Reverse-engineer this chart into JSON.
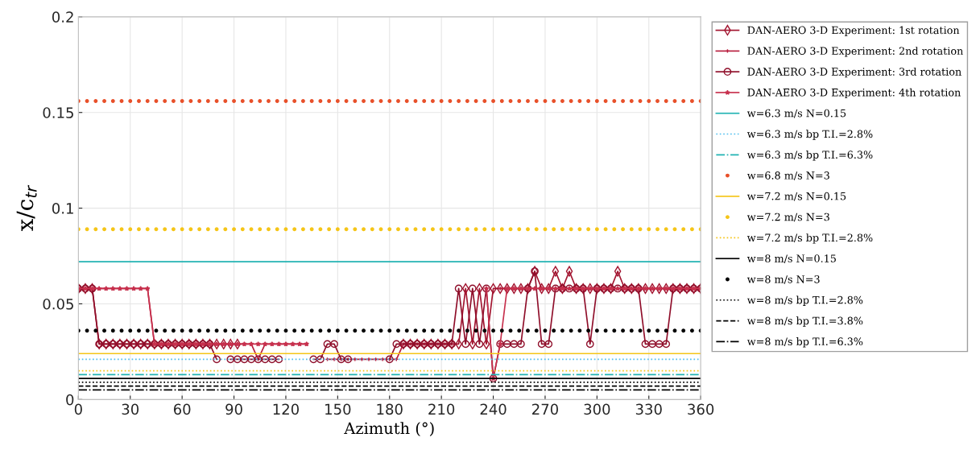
{
  "chart_data": {
    "type": "line",
    "xlabel": "Azimuth (°)",
    "ylabel": "x/c$_{tr}$",
    "x": [
      0,
      4,
      8,
      12,
      16,
      20,
      24,
      28,
      32,
      36,
      40,
      44,
      48,
      52,
      56,
      60,
      64,
      68,
      72,
      76,
      80,
      84,
      88,
      92,
      96,
      100,
      104,
      108,
      112,
      116,
      120,
      124,
      128,
      132,
      136,
      140,
      144,
      148,
      152,
      156,
      160,
      164,
      168,
      172,
      176,
      180,
      184,
      188,
      192,
      196,
      200,
      204,
      208,
      212,
      216,
      220,
      224,
      228,
      232,
      236,
      240,
      244,
      248,
      252,
      256,
      260,
      264,
      268,
      272,
      276,
      280,
      284,
      288,
      292,
      296,
      300,
      304,
      308,
      312,
      316,
      320,
      324,
      328,
      332,
      336,
      340,
      344,
      348,
      352,
      356,
      360
    ],
    "xlim": [
      0,
      360
    ],
    "xticks": [
      0,
      30,
      60,
      90,
      120,
      150,
      180,
      210,
      240,
      270,
      300,
      330,
      360
    ],
    "ylim": [
      0,
      0.2
    ],
    "yticks": [
      0,
      0.05,
      0.1,
      0.15,
      0.2
    ],
    "grid": true,
    "legend": "right",
    "series": [
      {
        "name": "DAN-AERO 3-D Experiment: 1st rotation",
        "color": "#a2142f",
        "marker": "diamond",
        "line_style": "solid",
        "values": [
          0.058,
          0.058,
          0.058,
          0.029,
          0.029,
          0.029,
          0.029,
          0.029,
          0.029,
          0.029,
          0.029,
          0.029,
          0.029,
          0.029,
          0.029,
          0.029,
          0.029,
          0.029,
          0.029,
          0.029,
          0.029,
          0.029,
          0.029,
          0.029,
          null,
          null,
          null,
          null,
          null,
          null,
          null,
          null,
          null,
          null,
          null,
          null,
          null,
          null,
          null,
          null,
          null,
          null,
          null,
          null,
          null,
          null,
          null,
          0.029,
          0.029,
          0.029,
          0.029,
          0.029,
          0.029,
          0.029,
          0.029,
          0.029,
          0.058,
          0.029,
          0.058,
          0.029,
          0.058,
          0.058,
          0.058,
          0.058,
          0.058,
          0.058,
          0.067,
          0.058,
          0.058,
          0.067,
          0.058,
          0.067,
          0.058,
          0.058,
          0.058,
          0.058,
          0.058,
          0.058,
          0.067,
          0.058,
          0.058,
          0.058,
          0.058,
          0.058,
          0.058,
          0.058,
          0.058,
          0.058,
          0.058,
          0.058,
          0.058
        ]
      },
      {
        "name": "DAN-AERO 3-D Experiment: 2nd rotation",
        "color": "#b81f3f",
        "marker": "cross",
        "line_style": "solid",
        "values": [
          0.058,
          0.058,
          0.058,
          0.058,
          0.058,
          0.058,
          0.058,
          0.058,
          0.058,
          0.058,
          0.058,
          0.029,
          0.029,
          0.029,
          0.029,
          0.029,
          0.029,
          0.029,
          0.029,
          0.029,
          0.029,
          0.029,
          0.029,
          0.029,
          0.029,
          0.029,
          0.021,
          0.029,
          0.029,
          0.029,
          0.029,
          0.029,
          0.029,
          0.029,
          null,
          null,
          0.021,
          0.021,
          0.021,
          0.021,
          0.021,
          0.021,
          0.021,
          0.021,
          0.021,
          0.021,
          0.021,
          0.029,
          0.029,
          0.029,
          0.029,
          0.029,
          0.029,
          0.029,
          0.029,
          null,
          null,
          null,
          null,
          null,
          null,
          0.058,
          0.058,
          0.058,
          0.058,
          0.058,
          0.058,
          0.058,
          0.058,
          0.058,
          0.058,
          0.058,
          0.058,
          0.058,
          0.058,
          0.058,
          0.058,
          0.058,
          0.058,
          0.058,
          0.058,
          0.058,
          0.058,
          0.058,
          0.058,
          0.058,
          0.058,
          0.058,
          0.058,
          0.058,
          0.058
        ]
      },
      {
        "name": "DAN-AERO 3-D Experiment: 3rd rotation",
        "color": "#8f0e2a",
        "marker": "circle",
        "line_style": "solid",
        "values": [
          0.058,
          0.058,
          0.058,
          0.029,
          0.029,
          0.029,
          0.029,
          0.029,
          0.029,
          0.029,
          0.029,
          0.029,
          0.029,
          0.029,
          0.029,
          0.029,
          0.029,
          0.029,
          0.029,
          0.029,
          0.021,
          null,
          0.021,
          0.021,
          0.021,
          0.021,
          0.021,
          0.021,
          0.021,
          0.021,
          null,
          null,
          null,
          null,
          0.021,
          0.021,
          0.029,
          0.029,
          0.021,
          0.021,
          null,
          null,
          null,
          null,
          null,
          0.021,
          0.029,
          0.029,
          0.029,
          0.029,
          0.029,
          0.029,
          0.029,
          0.029,
          0.029,
          0.058,
          0.029,
          0.058,
          0.029,
          0.058,
          0.011,
          0.029,
          0.029,
          0.029,
          0.029,
          0.058,
          0.067,
          0.029,
          0.029,
          0.058,
          0.058,
          0.058,
          0.058,
          0.058,
          0.029,
          0.058,
          0.058,
          0.058,
          0.058,
          0.058,
          0.058,
          0.058,
          0.029,
          0.029,
          0.029,
          0.029,
          0.058,
          0.058,
          0.058,
          0.058,
          0.058
        ]
      },
      {
        "name": "DAN-AERO 3-D Experiment: 4th rotation",
        "color": "#c7304d",
        "marker": "star",
        "line_style": "solid",
        "values": [
          0.058,
          0.058,
          0.058,
          0.058,
          0.058,
          0.058,
          0.058,
          0.058,
          0.058,
          0.058,
          0.058,
          0.029,
          0.029,
          0.029,
          0.029,
          0.029,
          0.029,
          0.029,
          0.029,
          0.029,
          0.029,
          0.029,
          0.029,
          0.029,
          0.029,
          0.029,
          0.029,
          0.029,
          0.029,
          0.029,
          0.029,
          0.029,
          0.029,
          0.029,
          null,
          null,
          null,
          null,
          null,
          null,
          null,
          null,
          null,
          null,
          null,
          null,
          null,
          null,
          null,
          null,
          null,
          null,
          null,
          null,
          null,
          null,
          null,
          null,
          null,
          0.058,
          0.011,
          0.029,
          0.058,
          0.058,
          0.058,
          0.058,
          0.058,
          0.058,
          0.058,
          0.058,
          0.058,
          0.058,
          0.058,
          0.058,
          0.058,
          0.058,
          0.058,
          0.058,
          0.058,
          0.058,
          0.058,
          0.058,
          0.058,
          0.058,
          0.058,
          0.058,
          0.058,
          0.058,
          0.058,
          0.058,
          0.058
        ]
      },
      {
        "name": "w=6.3 m/s N=0.15",
        "color": "#22b3b3",
        "line_style": "solid",
        "marker": "none",
        "x": [
          0,
          360
        ],
        "values": [
          0.072,
          0.072
        ]
      },
      {
        "name": "w=6.3 m/s bp T.I.=2.8%",
        "color": "#4dbeee",
        "line_style": "dotted",
        "marker": "none",
        "x": [
          0,
          360
        ],
        "values": [
          0.021,
          0.021
        ]
      },
      {
        "name": "w=6.3 m/s bp T.I.=6.3%",
        "color": "#22b3b3",
        "line_style": "dashdot",
        "marker": "none",
        "x": [
          0,
          360
        ],
        "values": [
          0.013,
          0.013
        ]
      },
      {
        "name": "w=6.8 m/s N=3",
        "color": "#e8502a",
        "type": "scatter",
        "marker": "circle",
        "x": [
          0,
          5,
          10,
          15,
          20,
          25,
          30,
          35,
          40,
          45,
          50,
          55,
          60,
          65,
          70,
          75,
          80,
          85,
          90,
          95,
          100,
          105,
          110,
          115,
          120,
          125,
          130,
          135,
          140,
          145,
          150,
          155,
          160,
          165,
          170,
          175,
          180,
          185,
          190,
          195,
          200,
          205,
          210,
          215,
          220,
          225,
          230,
          235,
          240,
          245,
          250,
          255,
          260,
          265,
          270,
          275,
          280,
          285,
          290,
          295,
          300,
          305,
          310,
          315,
          320,
          325,
          330,
          335,
          340,
          345,
          350,
          355,
          360
        ],
        "values": [
          0.156,
          0.156,
          0.156,
          0.156,
          0.156,
          0.156,
          0.156,
          0.156,
          0.156,
          0.156,
          0.156,
          0.156,
          0.156,
          0.156,
          0.156,
          0.156,
          0.156,
          0.156,
          0.156,
          0.156,
          0.156,
          0.156,
          0.156,
          0.156,
          0.156,
          0.156,
          0.156,
          0.156,
          0.156,
          0.156,
          0.156,
          0.156,
          0.156,
          0.156,
          0.156,
          0.156,
          0.156,
          0.156,
          0.156,
          0.156,
          0.156,
          0.156,
          0.156,
          0.156,
          0.156,
          0.156,
          0.156,
          0.156,
          0.156,
          0.156,
          0.156,
          0.156,
          0.156,
          0.156,
          0.156,
          0.156,
          0.156,
          0.156,
          0.156,
          0.156,
          0.156,
          0.156,
          0.156,
          0.156,
          0.156,
          0.156,
          0.156,
          0.156,
          0.156,
          0.156,
          0.156,
          0.156,
          0.156
        ]
      },
      {
        "name": "w=7.2 m/s N=0.15",
        "color": "#f5c518",
        "line_style": "solid",
        "marker": "none",
        "x": [
          0,
          360
        ],
        "values": [
          0.024,
          0.024
        ]
      },
      {
        "name": "w=7.2 m/s N=3",
        "color": "#f5c518",
        "type": "scatter",
        "marker": "circle",
        "x": [
          0,
          5,
          10,
          15,
          20,
          25,
          30,
          35,
          40,
          45,
          50,
          55,
          60,
          65,
          70,
          75,
          80,
          85,
          90,
          95,
          100,
          105,
          110,
          115,
          120,
          125,
          130,
          135,
          140,
          145,
          150,
          155,
          160,
          165,
          170,
          175,
          180,
          185,
          190,
          195,
          200,
          205,
          210,
          215,
          220,
          225,
          230,
          235,
          240,
          245,
          250,
          255,
          260,
          265,
          270,
          275,
          280,
          285,
          290,
          295,
          300,
          305,
          310,
          315,
          320,
          325,
          330,
          335,
          340,
          345,
          350,
          355,
          360
        ],
        "values": [
          0.089,
          0.089,
          0.089,
          0.089,
          0.089,
          0.089,
          0.089,
          0.089,
          0.089,
          0.089,
          0.089,
          0.089,
          0.089,
          0.089,
          0.089,
          0.089,
          0.089,
          0.089,
          0.089,
          0.089,
          0.089,
          0.089,
          0.089,
          0.089,
          0.089,
          0.089,
          0.089,
          0.089,
          0.089,
          0.089,
          0.089,
          0.089,
          0.089,
          0.089,
          0.089,
          0.089,
          0.089,
          0.089,
          0.089,
          0.089,
          0.089,
          0.089,
          0.089,
          0.089,
          0.089,
          0.089,
          0.089,
          0.089,
          0.089,
          0.089,
          0.089,
          0.089,
          0.089,
          0.089,
          0.089,
          0.089,
          0.089,
          0.089,
          0.089,
          0.089,
          0.089,
          0.089,
          0.089,
          0.089,
          0.089,
          0.089,
          0.089,
          0.089,
          0.089,
          0.089,
          0.089,
          0.089,
          0.089
        ]
      },
      {
        "name": "w=7.2 m/s bp T.I.=2.8%",
        "color": "#f5c518",
        "line_style": "dotted",
        "marker": "none",
        "x": [
          0,
          360
        ],
        "values": [
          0.015,
          0.015
        ]
      },
      {
        "name": "w=8 m/s N=0.15",
        "color": "#000000",
        "line_style": "solid",
        "marker": "none",
        "x": [
          0,
          360
        ],
        "values": [
          0.011,
          0.011
        ]
      },
      {
        "name": "w=8 m/s N=3",
        "color": "#000000",
        "type": "scatter",
        "marker": "circle",
        "x": [
          0,
          5,
          10,
          15,
          20,
          25,
          30,
          35,
          40,
          45,
          50,
          55,
          60,
          65,
          70,
          75,
          80,
          85,
          90,
          95,
          100,
          105,
          110,
          115,
          120,
          125,
          130,
          135,
          140,
          145,
          150,
          155,
          160,
          165,
          170,
          175,
          180,
          185,
          190,
          195,
          200,
          205,
          210,
          215,
          220,
          225,
          230,
          235,
          240,
          245,
          250,
          255,
          260,
          265,
          270,
          275,
          280,
          285,
          290,
          295,
          300,
          305,
          310,
          315,
          320,
          325,
          330,
          335,
          340,
          345,
          350,
          355,
          360
        ],
        "values": [
          0.036,
          0.036,
          0.036,
          0.036,
          0.036,
          0.036,
          0.036,
          0.036,
          0.036,
          0.036,
          0.036,
          0.036,
          0.036,
          0.036,
          0.036,
          0.036,
          0.036,
          0.036,
          0.036,
          0.036,
          0.036,
          0.036,
          0.036,
          0.036,
          0.036,
          0.036,
          0.036,
          0.036,
          0.036,
          0.036,
          0.036,
          0.036,
          0.036,
          0.036,
          0.036,
          0.036,
          0.036,
          0.036,
          0.036,
          0.036,
          0.036,
          0.036,
          0.036,
          0.036,
          0.036,
          0.036,
          0.036,
          0.036,
          0.036,
          0.036,
          0.036,
          0.036,
          0.036,
          0.036,
          0.036,
          0.036,
          0.036,
          0.036,
          0.036,
          0.036,
          0.036,
          0.036,
          0.036,
          0.036,
          0.036,
          0.036,
          0.036,
          0.036,
          0.036,
          0.036,
          0.036,
          0.036,
          0.036
        ]
      },
      {
        "name": "w=8 m/s bp T.I.=2.8%",
        "color": "#000000",
        "line_style": "dotted",
        "marker": "none",
        "x": [
          0,
          360
        ],
        "values": [
          0.009,
          0.009
        ]
      },
      {
        "name": "w=8 m/s bp T.I.=3.8%",
        "color": "#000000",
        "line_style": "dashed",
        "marker": "none",
        "x": [
          0,
          360
        ],
        "values": [
          0.007,
          0.007
        ]
      },
      {
        "name": "w=8 m/s bp T.I.=6.3%",
        "color": "#000000",
        "line_style": "dashdot",
        "marker": "none",
        "x": [
          0,
          360
        ],
        "values": [
          0.005,
          0.005
        ]
      }
    ]
  }
}
